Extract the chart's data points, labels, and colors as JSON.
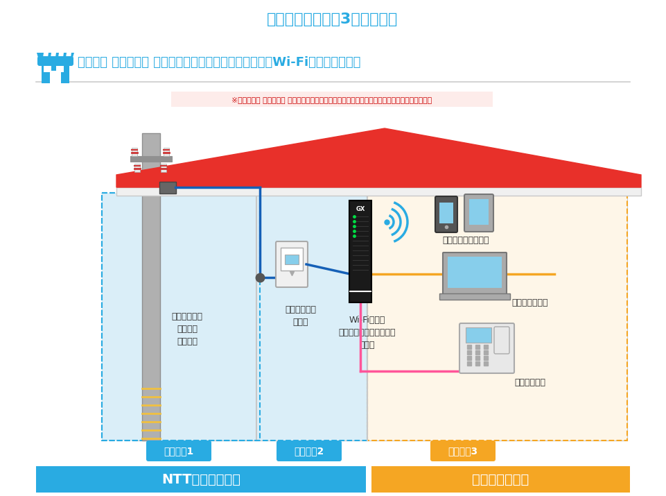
{
  "title": "開通工事の流れは3ステップ！",
  "title_color": "#29abe2",
  "subtitle": "フレッツ 光ネクスト ギガファミリー・スマートタイプ（Wi-Fi利用時）の場合",
  "subtitle_color": "#29abe2",
  "notice": "※「フレッツ 光ネクスト ギガファミリー・スマートタイプ」は新規申込受付を停止しています。",
  "notice_bg": "#fdecea",
  "notice_text_color": "#cc0000",
  "bg_color": "#ffffff",
  "step1_label": "ステップ1",
  "step2_label": "ステップ2",
  "step3_label": "ステップ3",
  "step12_color": "#29abe2",
  "step3_color": "#f5a623",
  "ntt_label": "NTT東日本が実施",
  "ntt_color": "#29abe2",
  "customer_label": "お客さまが実施",
  "customer_color": "#f5a623",
  "box12_fill": "#daeef8",
  "box12_edge": "#29abe2",
  "box3_fill": "#fef6e8",
  "box3_edge": "#f5a623",
  "roof_color": "#e8302a",
  "roof_edge": "#e8302a",
  "wall_fill": "#ffffff",
  "wall_edge": "#c8c8c8",
  "eave_fill": "#f0f0f0",
  "eave_edge": "#c8c8c8",
  "pole_fill": "#b0b0b0",
  "pole_edge": "#909090",
  "crossarm_color": "#909090",
  "insulator_fill": "#e8e8e8",
  "insulator_red": "#cc3333",
  "stripe_color": "#f0c040",
  "cable_blue": "#1560b7",
  "cable_orange": "#f5a623",
  "cable_pink": "#ff5599",
  "label1": "光ファイバー\nケーブル\n引き込み",
  "label2": "光コンセント\nの設置",
  "label3": "Wi-Fiルータ\n（ホームゲートウェイ）\nの設置",
  "label4": "パソコンの設定",
  "label5": "スマホ　タブレット",
  "label6": "電話機の設置",
  "label_color": "#333333",
  "divider_color": "#cccccc",
  "white": "#ffffff",
  "gray_light": "#e8e8e8",
  "gray_mid": "#aaaaaa",
  "gray_dark": "#777777",
  "blue_light": "#87ceeb",
  "blue_mid": "#5ba8d0",
  "dark_device": "#333333",
  "wifi_color": "#29abe2"
}
